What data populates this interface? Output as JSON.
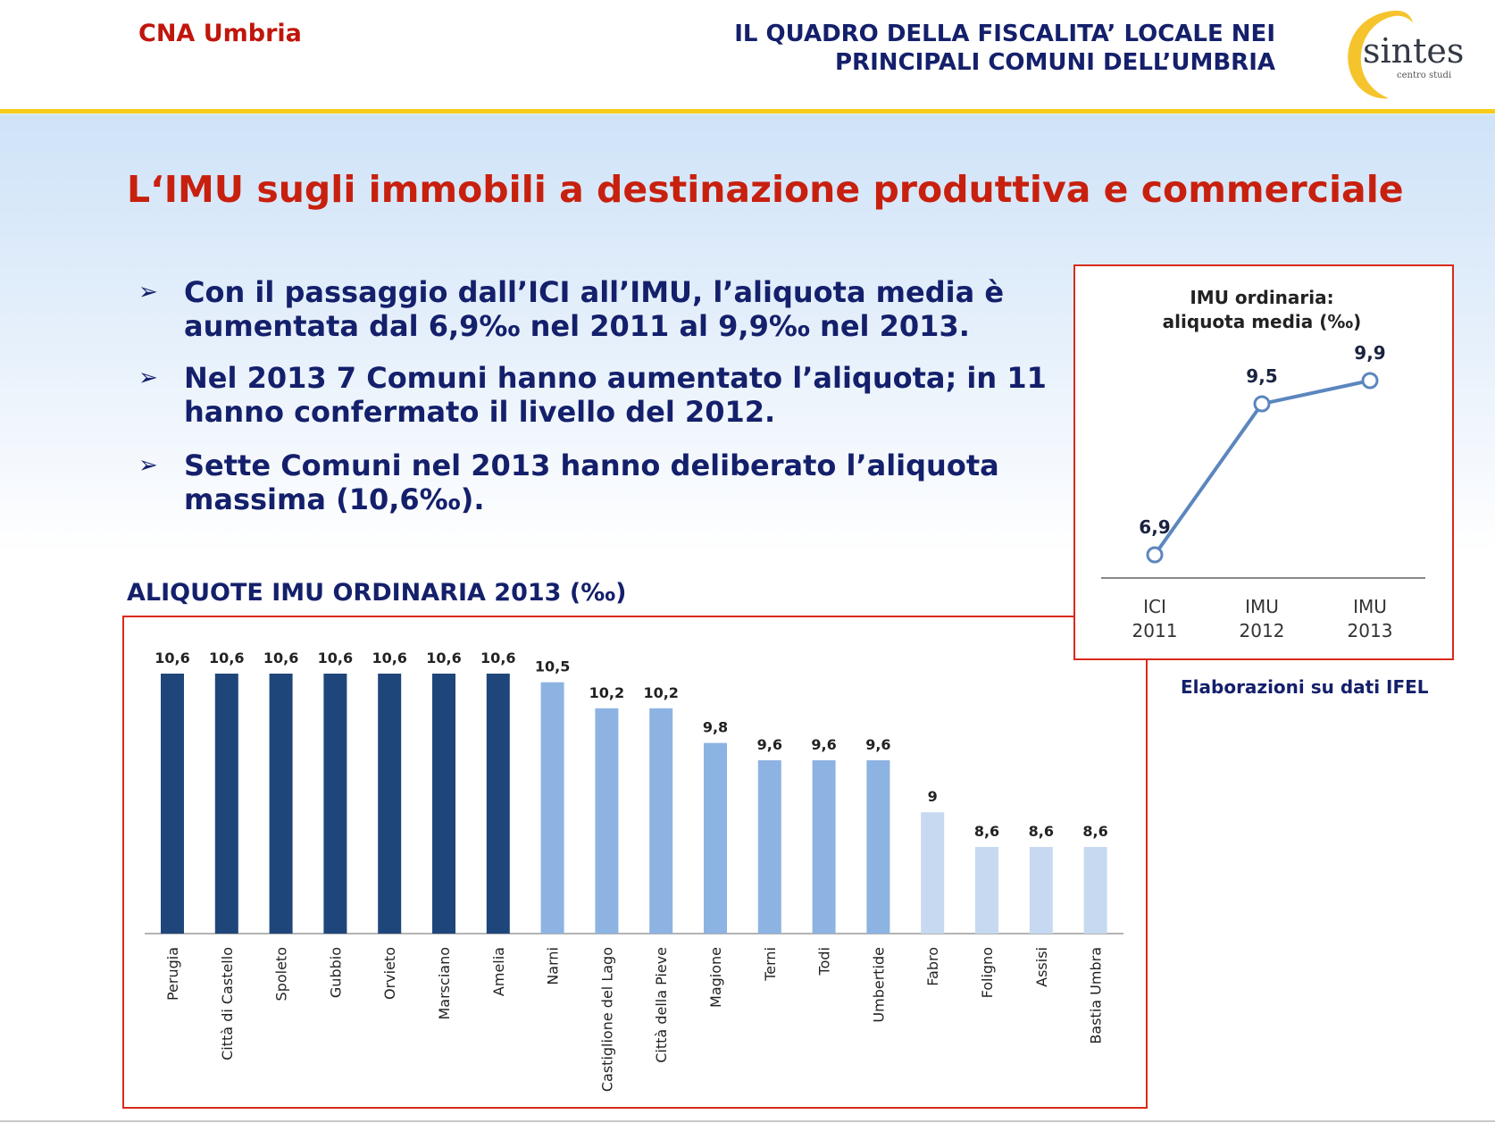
{
  "header": {
    "org": "CNA Umbria",
    "title_line1": "IL QUADRO DELLA FISCALITA’ LOCALE NEI",
    "title_line2": "PRINCIPALI COMUNI DELL’UMBRIA",
    "logo_text": "sintesi",
    "logo_subtext": "centro studi"
  },
  "slide_title": "L‘IMU sugli immobili a destinazione produttiva e commerciale",
  "bullets": [
    {
      "icon": "arrow-bullet-icon",
      "text": "Con il passaggio dall’ICI all’IMU, l’aliquota media è aumentata dal 6,9‰ nel 2011 al 9,9‰ nel 2013."
    },
    {
      "icon": "arrow-bullet-icon",
      "text": "Nel 2013 7 Comuni hanno aumentato l’aliquota; in 11 hanno confermato il livello del 2012."
    },
    {
      "icon": "arrow-bullet-icon",
      "text": "Sette Comuni nel 2013 hanno deliberato l’aliquota massima (10,6‰)."
    }
  ],
  "source": "Elaborazioni su dati IFEL",
  "colors": {
    "dark": "#1f467a",
    "medium": "#8db3e2",
    "light": "#c6d9f1",
    "line": "#5b86be",
    "accent": "#c8200e"
  },
  "chart_data": [
    {
      "type": "bar",
      "title": "ALIQUOTE IMU ORDINARIA 2013 (‰)",
      "categories": [
        "Perugia",
        "Città di Castello",
        "Spoleto",
        "Gubbio",
        "Orvieto",
        "Marsciano",
        "Amelia",
        "Narni",
        "Castiglione del Lago",
        "Città della Pieve",
        "Magione",
        "Terni",
        "Todi",
        "Umbertide",
        "Fabro",
        "Foligno",
        "Assisi",
        "Bastia Umbra"
      ],
      "values": [
        10.6,
        10.6,
        10.6,
        10.6,
        10.6,
        10.6,
        10.6,
        10.5,
        10.2,
        10.2,
        9.8,
        9.6,
        9.6,
        9.6,
        9,
        8.6,
        8.6,
        8.6
      ],
      "labels": [
        "10,6",
        "10,6",
        "10,6",
        "10,6",
        "10,6",
        "10,6",
        "10,6",
        "10,5",
        "10,2",
        "10,2",
        "9,8",
        "9,6",
        "9,6",
        "9,6",
        "9",
        "8,6",
        "8,6",
        "8,6"
      ],
      "tiers": [
        "dark",
        "dark",
        "dark",
        "dark",
        "dark",
        "dark",
        "dark",
        "medium",
        "medium",
        "medium",
        "medium",
        "medium",
        "medium",
        "medium",
        "light",
        "light",
        "light",
        "light"
      ],
      "xlabel": "",
      "ylabel": "",
      "ylim": [
        7.6,
        10.6
      ],
      "grid": false
    },
    {
      "type": "line",
      "title": "IMU ordinaria:",
      "subtitle": "aliquota media (‰)",
      "categories": [
        [
          "ICI",
          "2011"
        ],
        [
          "IMU",
          "2012"
        ],
        [
          "IMU",
          "2013"
        ]
      ],
      "values": [
        6.9,
        9.5,
        9.9
      ],
      "labels": [
        "6,9",
        "9,5",
        "9,9"
      ],
      "ylim": [
        6.5,
        10.3
      ],
      "grid": false
    }
  ]
}
